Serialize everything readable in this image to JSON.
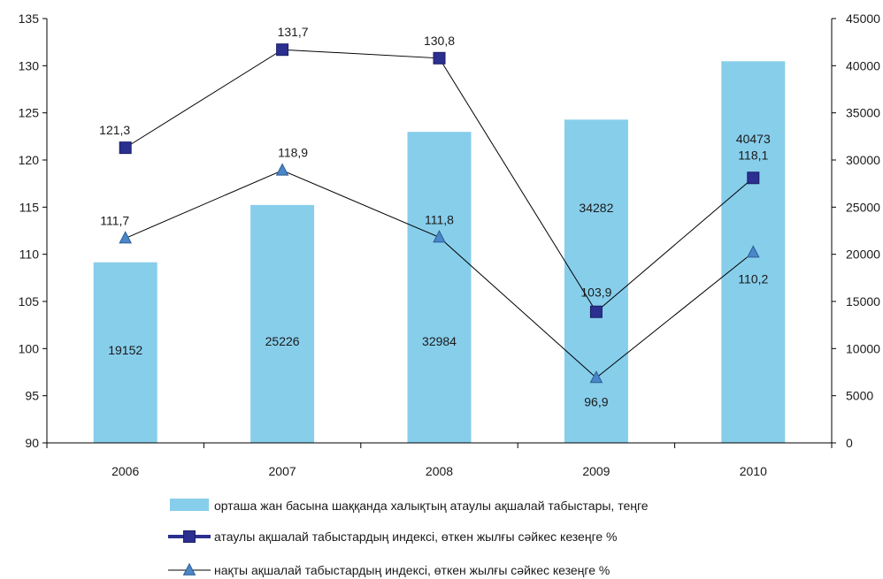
{
  "chart_data": {
    "type": "bar+line",
    "categories": [
      "2006",
      "2007",
      "2008",
      "2009",
      "2010"
    ],
    "bars": {
      "name": "орташа жан басына шаққанда халықтың атаулы ақшалай табыстары, теңге",
      "axis": "right",
      "values": [
        19152,
        25226,
        32984,
        34282,
        40473
      ],
      "labels": [
        "19152",
        "25226",
        "32984",
        "34282",
        "40473"
      ],
      "color": "#87ceeb"
    },
    "lines": [
      {
        "name": "атаулы ақшалай табыстардың индексі, өткен жылғы сәйкес кезеңге %",
        "axis": "left",
        "marker": "square",
        "values": [
          121.3,
          131.7,
          130.8,
          103.9,
          118.1
        ],
        "labels": [
          "121,3",
          "131,7",
          "130,8",
          "103,9",
          "118,1"
        ],
        "color": "#2b2f8f"
      },
      {
        "name": "нақты ақшалай табыстардың индексі, өткен жылғы сәйкес кезеңге %",
        "axis": "left",
        "marker": "triangle",
        "values": [
          111.7,
          118.9,
          111.8,
          96.9,
          110.2
        ],
        "labels": [
          "111,7",
          "118,9",
          "111,8",
          "96,9",
          "110,2"
        ],
        "color": "#4a86c8"
      }
    ],
    "left_axis": {
      "min": 90,
      "max": 135,
      "step": 5,
      "ticks": [
        "90",
        "95",
        "100",
        "105",
        "110",
        "115",
        "120",
        "125",
        "130",
        "135"
      ]
    },
    "right_axis": {
      "min": 0,
      "max": 45000,
      "step": 5000,
      "ticks": [
        "0",
        "5000",
        "10000",
        "15000",
        "20000",
        "25000",
        "30000",
        "35000",
        "40000",
        "45000"
      ]
    },
    "grid": false,
    "legend_position": "bottom"
  }
}
